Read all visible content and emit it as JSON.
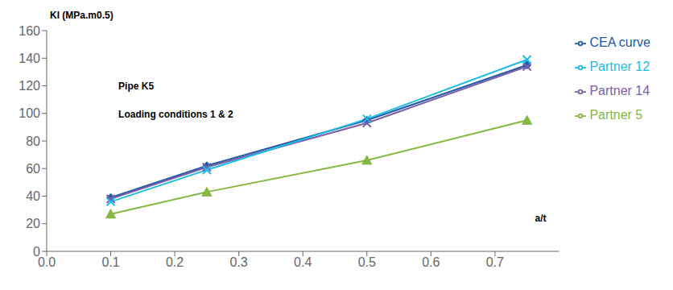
{
  "chart_data": {
    "type": "line",
    "ylabel": "KI (MPa.m0.5)",
    "xlabel": "a/t",
    "annotations": [
      "Pipe K5",
      "Loading conditions 1 & 2"
    ],
    "x": [
      0.1,
      0.25,
      0.5,
      0.75
    ],
    "series": [
      {
        "name": "CEA curve",
        "color": "#2059A8",
        "marker": "diamond",
        "values": [
          39,
          62,
          95,
          135
        ]
      },
      {
        "name": "Partner 5",
        "color": "#84B840",
        "marker": "triangle",
        "values": [
          27,
          43,
          66,
          95
        ]
      },
      {
        "name": "Partner 14",
        "color": "#7B5EA7",
        "marker": "x",
        "values": [
          38,
          61,
          93,
          134
        ]
      },
      {
        "name": "Partner 12",
        "color": "#1BBCE8",
        "marker": "x",
        "values": [
          36,
          59,
          96,
          139
        ]
      }
    ],
    "xlim": [
      0,
      0.8
    ],
    "ylim": [
      0,
      160
    ],
    "xticks": [
      {
        "value": 0,
        "label": "0.0"
      },
      0.1,
      0.2,
      0.3,
      0.4,
      0.5,
      0.6,
      0.7
    ],
    "yticks": [
      0,
      20,
      40,
      60,
      80,
      100,
      120,
      140,
      160
    ],
    "grid": false,
    "legend": "right"
  }
}
